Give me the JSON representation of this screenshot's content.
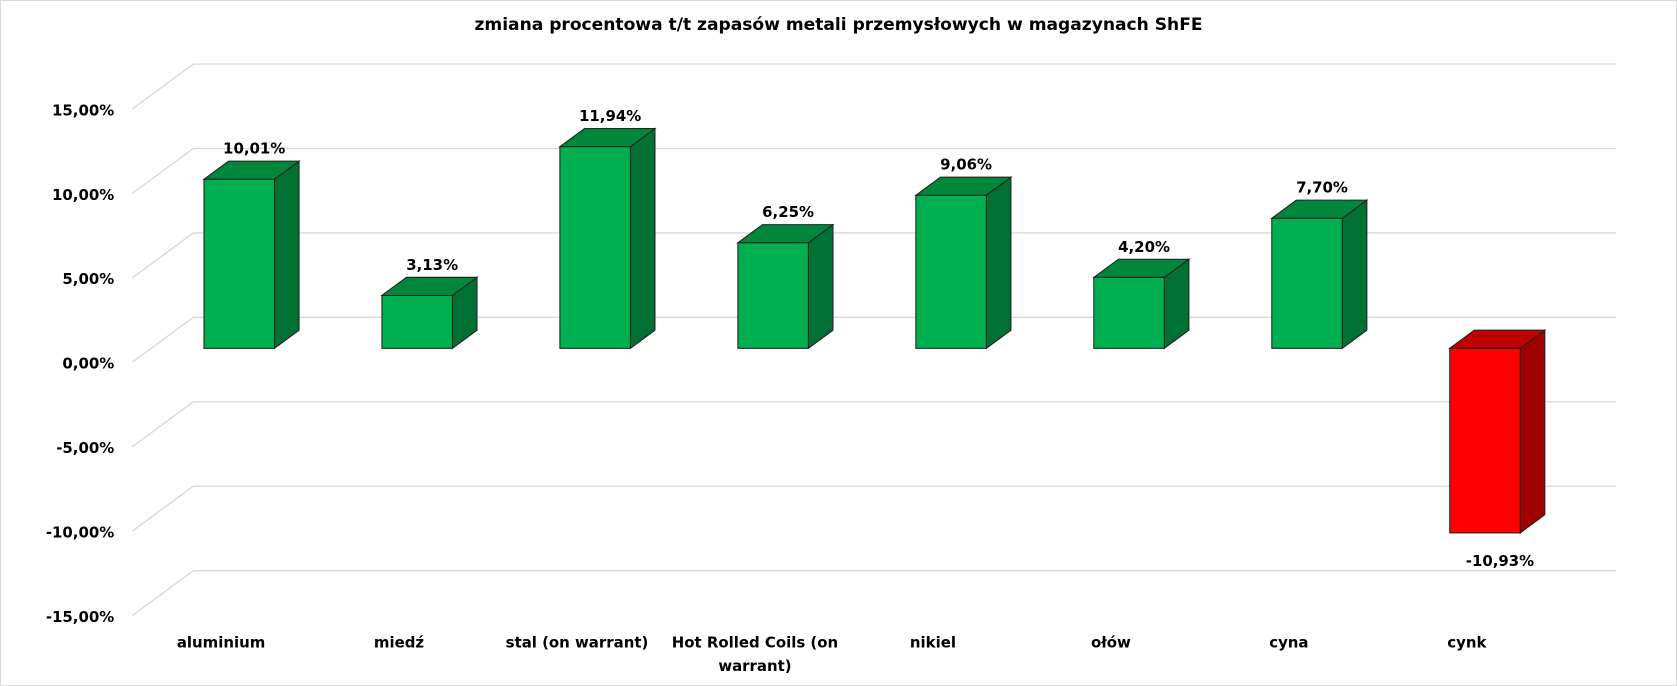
{
  "chart_data": {
    "type": "bar",
    "title": "zmiana procentowa t/t zapasów metali przemysłowych w magazynach ShFE",
    "xlabel": "",
    "ylabel": "",
    "ylim": [
      -15,
      15
    ],
    "yticks": [
      15,
      10,
      5,
      0,
      -5,
      -10,
      -15
    ],
    "ytick_labels": [
      "15,00%",
      "10,00%",
      "5,00%",
      "0,00%",
      "-5,00%",
      "-10,00%",
      "-15,00%"
    ],
    "grid": true,
    "style": "3d-column",
    "categories": [
      "aluminium",
      "miedź",
      "stal (on warrant)",
      "Hot Rolled Coils (on warrant)",
      "nikiel",
      "ołów",
      "cyna",
      "cynk"
    ],
    "category_label_lines": [
      [
        "aluminium"
      ],
      [
        "miedź"
      ],
      [
        "stal (on warrant)"
      ],
      [
        "Hot Rolled Coils (on",
        "warrant)"
      ],
      [
        "nikiel"
      ],
      [
        "ołów"
      ],
      [
        "cyna"
      ],
      [
        "cynk"
      ]
    ],
    "values": [
      10.01,
      3.13,
      11.94,
      6.25,
      9.06,
      4.2,
      7.7,
      -10.93
    ],
    "data_labels": [
      "10,01%",
      "3,13%",
      "11,94%",
      "6,25%",
      "9,06%",
      "4,20%",
      "7,70%",
      "-10,93%"
    ],
    "colors": {
      "positive": {
        "front": "#00b050",
        "side": "#007033",
        "top": "#00873c"
      },
      "negative": {
        "front": "#ff0000",
        "side": "#a00000",
        "top": "#c00000"
      },
      "grid": "#d9d9d9"
    }
  }
}
